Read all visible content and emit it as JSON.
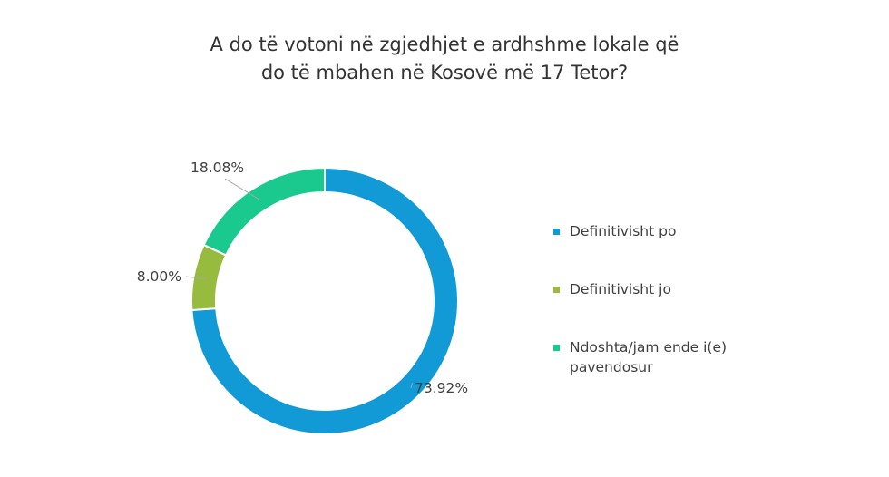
{
  "chart_data": {
    "type": "pie",
    "variant": "donut",
    "title_line1": "A do të votoni në zgjedhjet e ardhshme lokale që",
    "title_line2": "do të mbahen në Kosovë më 17 Tetor?",
    "categories": [
      "Definitivisht po",
      "Definitivisht jo",
      "Ndoshta/jam ende i(e) pavendosur"
    ],
    "values": [
      73.92,
      8.0,
      18.08
    ],
    "data_labels": [
      "73.92%",
      "8.00%",
      "18.08%"
    ],
    "colors": [
      "#119ad6",
      "#97bb3f",
      "#19c98e"
    ],
    "legend_position": "right"
  }
}
